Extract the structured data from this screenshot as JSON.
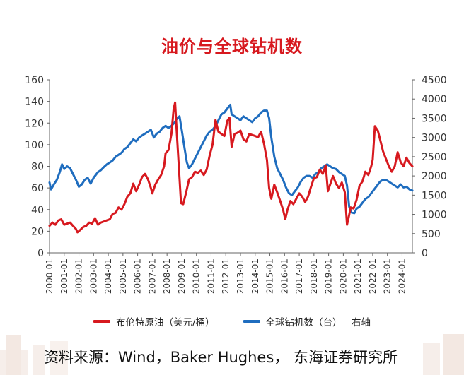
{
  "title": "油价与全球钻机数",
  "source": "资料来源：Wind，Baker Hughes， 东海证券研究所",
  "colors": {
    "title": "#d7191f",
    "brent": "#d7191f",
    "rigs": "#1f6dbf",
    "axis": "#666666",
    "text": "#333333"
  },
  "legend": [
    {
      "label": "布伦特原油（美元/桶）",
      "color": "#d7191f"
    },
    {
      "label": "全球钻机数（台）—右轴",
      "color": "#1f6dbf"
    }
  ],
  "chart_data": {
    "type": "line",
    "title": "油价与全球钻机数",
    "x_tick_labels": [
      "2000-01",
      "2001-01",
      "2002-01",
      "2003-01",
      "2004-01",
      "2005-01",
      "2006-01",
      "2007-01",
      "2008-01",
      "2009-01",
      "2010-01",
      "2011-01",
      "2012-01",
      "2013-01",
      "2014-01",
      "2015-01",
      "2016-01",
      "2017-01",
      "2018-01",
      "2019-01",
      "2020-01",
      "2021-01",
      "2022-01",
      "2023-01",
      "2024-01"
    ],
    "x_range": [
      2000.0,
      2024.7
    ],
    "y_left": {
      "min": 0,
      "max": 160,
      "ticks": [
        0,
        20,
        40,
        60,
        80,
        100,
        120,
        140,
        160
      ]
    },
    "y_right": {
      "min": 0,
      "max": 4500,
      "ticks": [
        0,
        500,
        1000,
        1500,
        2000,
        2500,
        3000,
        3500,
        4000,
        4500
      ]
    },
    "series": [
      {
        "name": "布伦特原油（美元/桶）",
        "axis": "left",
        "points": [
          [
            2000.0,
            25
          ],
          [
            2000.2,
            28
          ],
          [
            2000.4,
            26
          ],
          [
            2000.6,
            30
          ],
          [
            2000.8,
            31
          ],
          [
            2001.0,
            26
          ],
          [
            2001.2,
            27
          ],
          [
            2001.4,
            28
          ],
          [
            2001.6,
            25
          ],
          [
            2001.8,
            22
          ],
          [
            2001.9,
            19
          ],
          [
            2002.0,
            20
          ],
          [
            2002.3,
            24
          ],
          [
            2002.5,
            25
          ],
          [
            2002.7,
            28
          ],
          [
            2002.9,
            27
          ],
          [
            2003.1,
            32
          ],
          [
            2003.3,
            26
          ],
          [
            2003.5,
            28
          ],
          [
            2003.7,
            29
          ],
          [
            2003.9,
            30
          ],
          [
            2004.1,
            31
          ],
          [
            2004.3,
            36
          ],
          [
            2004.5,
            37
          ],
          [
            2004.7,
            42
          ],
          [
            2004.9,
            40
          ],
          [
            2005.1,
            45
          ],
          [
            2005.3,
            52
          ],
          [
            2005.5,
            55
          ],
          [
            2005.7,
            64
          ],
          [
            2005.9,
            57
          ],
          [
            2006.1,
            63
          ],
          [
            2006.3,
            70
          ],
          [
            2006.5,
            73
          ],
          [
            2006.7,
            68
          ],
          [
            2006.9,
            60
          ],
          [
            2007.0,
            55
          ],
          [
            2007.2,
            63
          ],
          [
            2007.4,
            68
          ],
          [
            2007.6,
            72
          ],
          [
            2007.8,
            80
          ],
          [
            2007.9,
            92
          ],
          [
            2008.1,
            95
          ],
          [
            2008.3,
            110
          ],
          [
            2008.45,
            133
          ],
          [
            2008.55,
            139
          ],
          [
            2008.65,
            114
          ],
          [
            2008.8,
            80
          ],
          [
            2008.95,
            46
          ],
          [
            2009.1,
            45
          ],
          [
            2009.3,
            56
          ],
          [
            2009.5,
            68
          ],
          [
            2009.7,
            70
          ],
          [
            2009.9,
            75
          ],
          [
            2010.1,
            74
          ],
          [
            2010.3,
            76
          ],
          [
            2010.5,
            72
          ],
          [
            2010.7,
            77
          ],
          [
            2010.9,
            90
          ],
          [
            2011.1,
            100
          ],
          [
            2011.3,
            123
          ],
          [
            2011.5,
            112
          ],
          [
            2011.7,
            110
          ],
          [
            2011.9,
            108
          ],
          [
            2012.1,
            122
          ],
          [
            2012.25,
            125
          ],
          [
            2012.4,
            98
          ],
          [
            2012.6,
            110
          ],
          [
            2012.8,
            111
          ],
          [
            2013.0,
            113
          ],
          [
            2013.2,
            105
          ],
          [
            2013.4,
            103
          ],
          [
            2013.6,
            110
          ],
          [
            2013.8,
            109
          ],
          [
            2014.0,
            108
          ],
          [
            2014.2,
            107
          ],
          [
            2014.4,
            112
          ],
          [
            2014.6,
            101
          ],
          [
            2014.8,
            86
          ],
          [
            2014.95,
            60
          ],
          [
            2015.1,
            50
          ],
          [
            2015.3,
            63
          ],
          [
            2015.5,
            56
          ],
          [
            2015.7,
            48
          ],
          [
            2015.9,
            40
          ],
          [
            2016.05,
            31
          ],
          [
            2016.2,
            40
          ],
          [
            2016.4,
            48
          ],
          [
            2016.6,
            45
          ],
          [
            2016.8,
            50
          ],
          [
            2017.0,
            55
          ],
          [
            2017.2,
            52
          ],
          [
            2017.4,
            47
          ],
          [
            2017.6,
            52
          ],
          [
            2017.8,
            61
          ],
          [
            2018.0,
            69
          ],
          [
            2018.2,
            70
          ],
          [
            2018.4,
            77
          ],
          [
            2018.6,
            73
          ],
          [
            2018.8,
            81
          ],
          [
            2018.95,
            57
          ],
          [
            2019.1,
            63
          ],
          [
            2019.3,
            71
          ],
          [
            2019.5,
            64
          ],
          [
            2019.7,
            60
          ],
          [
            2019.9,
            65
          ],
          [
            2020.1,
            56
          ],
          [
            2020.25,
            26
          ],
          [
            2020.35,
            32
          ],
          [
            2020.5,
            42
          ],
          [
            2020.7,
            41
          ],
          [
            2020.9,
            49
          ],
          [
            2021.1,
            62
          ],
          [
            2021.3,
            66
          ],
          [
            2021.5,
            75
          ],
          [
            2021.7,
            72
          ],
          [
            2021.9,
            80
          ],
          [
            2022.0,
            86
          ],
          [
            2022.15,
            117
          ],
          [
            2022.35,
            113
          ],
          [
            2022.5,
            105
          ],
          [
            2022.7,
            94
          ],
          [
            2022.9,
            87
          ],
          [
            2023.1,
            80
          ],
          [
            2023.3,
            75
          ],
          [
            2023.5,
            80
          ],
          [
            2023.7,
            93
          ],
          [
            2023.9,
            84
          ],
          [
            2024.1,
            80
          ],
          [
            2024.3,
            88
          ],
          [
            2024.5,
            83
          ],
          [
            2024.7,
            80
          ]
        ]
      },
      {
        "name": "全球钻机数（台）—右轴",
        "axis": "right",
        "points": [
          [
            2000.0,
            1830
          ],
          [
            2000.1,
            1650
          ],
          [
            2000.3,
            1780
          ],
          [
            2000.5,
            1900
          ],
          [
            2000.7,
            2100
          ],
          [
            2000.85,
            2300
          ],
          [
            2001.0,
            2180
          ],
          [
            2001.2,
            2250
          ],
          [
            2001.4,
            2200
          ],
          [
            2001.6,
            2050
          ],
          [
            2001.8,
            1900
          ],
          [
            2002.0,
            1720
          ],
          [
            2002.2,
            1780
          ],
          [
            2002.4,
            1900
          ],
          [
            2002.6,
            1950
          ],
          [
            2002.8,
            1800
          ],
          [
            2003.0,
            1950
          ],
          [
            2003.3,
            2100
          ],
          [
            2003.5,
            2150
          ],
          [
            2003.7,
            2230
          ],
          [
            2003.9,
            2300
          ],
          [
            2004.1,
            2350
          ],
          [
            2004.3,
            2400
          ],
          [
            2004.5,
            2500
          ],
          [
            2004.7,
            2550
          ],
          [
            2004.9,
            2600
          ],
          [
            2005.1,
            2700
          ],
          [
            2005.3,
            2750
          ],
          [
            2005.5,
            2850
          ],
          [
            2005.7,
            2950
          ],
          [
            2005.9,
            2900
          ],
          [
            2006.1,
            3000
          ],
          [
            2006.3,
            3050
          ],
          [
            2006.5,
            3100
          ],
          [
            2006.7,
            3150
          ],
          [
            2006.9,
            3200
          ],
          [
            2007.1,
            3000
          ],
          [
            2007.3,
            3100
          ],
          [
            2007.5,
            3150
          ],
          [
            2007.7,
            3250
          ],
          [
            2007.9,
            3300
          ],
          [
            2008.1,
            3250
          ],
          [
            2008.3,
            3300
          ],
          [
            2008.5,
            3380
          ],
          [
            2008.7,
            3500
          ],
          [
            2008.85,
            3550
          ],
          [
            2009.0,
            3200
          ],
          [
            2009.2,
            2700
          ],
          [
            2009.35,
            2350
          ],
          [
            2009.5,
            2200
          ],
          [
            2009.7,
            2300
          ],
          [
            2009.9,
            2450
          ],
          [
            2010.1,
            2600
          ],
          [
            2010.3,
            2750
          ],
          [
            2010.5,
            2900
          ],
          [
            2010.7,
            3050
          ],
          [
            2010.9,
            3150
          ],
          [
            2011.1,
            3200
          ],
          [
            2011.3,
            3300
          ],
          [
            2011.5,
            3450
          ],
          [
            2011.7,
            3600
          ],
          [
            2011.9,
            3650
          ],
          [
            2012.1,
            3750
          ],
          [
            2012.3,
            3850
          ],
          [
            2012.4,
            3600
          ],
          [
            2012.6,
            3550
          ],
          [
            2012.8,
            3500
          ],
          [
            2013.0,
            3450
          ],
          [
            2013.2,
            3550
          ],
          [
            2013.4,
            3500
          ],
          [
            2013.6,
            3450
          ],
          [
            2013.8,
            3400
          ],
          [
            2014.0,
            3500
          ],
          [
            2014.2,
            3550
          ],
          [
            2014.4,
            3650
          ],
          [
            2014.6,
            3700
          ],
          [
            2014.8,
            3700
          ],
          [
            2014.95,
            3500
          ],
          [
            2015.1,
            3000
          ],
          [
            2015.3,
            2500
          ],
          [
            2015.5,
            2200
          ],
          [
            2015.7,
            2050
          ],
          [
            2015.9,
            1900
          ],
          [
            2016.1,
            1700
          ],
          [
            2016.3,
            1550
          ],
          [
            2016.5,
            1500
          ],
          [
            2016.7,
            1600
          ],
          [
            2016.9,
            1700
          ],
          [
            2017.1,
            1850
          ],
          [
            2017.3,
            1950
          ],
          [
            2017.5,
            2000
          ],
          [
            2017.7,
            2000
          ],
          [
            2017.9,
            1950
          ],
          [
            2018.1,
            2050
          ],
          [
            2018.3,
            2100
          ],
          [
            2018.5,
            2200
          ],
          [
            2018.7,
            2250
          ],
          [
            2018.9,
            2300
          ],
          [
            2019.1,
            2250
          ],
          [
            2019.3,
            2200
          ],
          [
            2019.5,
            2180
          ],
          [
            2019.7,
            2100
          ],
          [
            2019.9,
            2050
          ],
          [
            2020.1,
            2000
          ],
          [
            2020.25,
            1750
          ],
          [
            2020.4,
            1200
          ],
          [
            2020.55,
            1050
          ],
          [
            2020.75,
            1030
          ],
          [
            2020.9,
            1150
          ],
          [
            2021.1,
            1200
          ],
          [
            2021.3,
            1300
          ],
          [
            2021.5,
            1400
          ],
          [
            2021.7,
            1450
          ],
          [
            2021.9,
            1550
          ],
          [
            2022.1,
            1650
          ],
          [
            2022.3,
            1750
          ],
          [
            2022.5,
            1850
          ],
          [
            2022.7,
            1900
          ],
          [
            2022.9,
            1900
          ],
          [
            2023.1,
            1850
          ],
          [
            2023.3,
            1800
          ],
          [
            2023.5,
            1750
          ],
          [
            2023.7,
            1700
          ],
          [
            2023.9,
            1780
          ],
          [
            2024.1,
            1700
          ],
          [
            2024.3,
            1720
          ],
          [
            2024.5,
            1650
          ],
          [
            2024.7,
            1620
          ]
        ]
      }
    ]
  }
}
